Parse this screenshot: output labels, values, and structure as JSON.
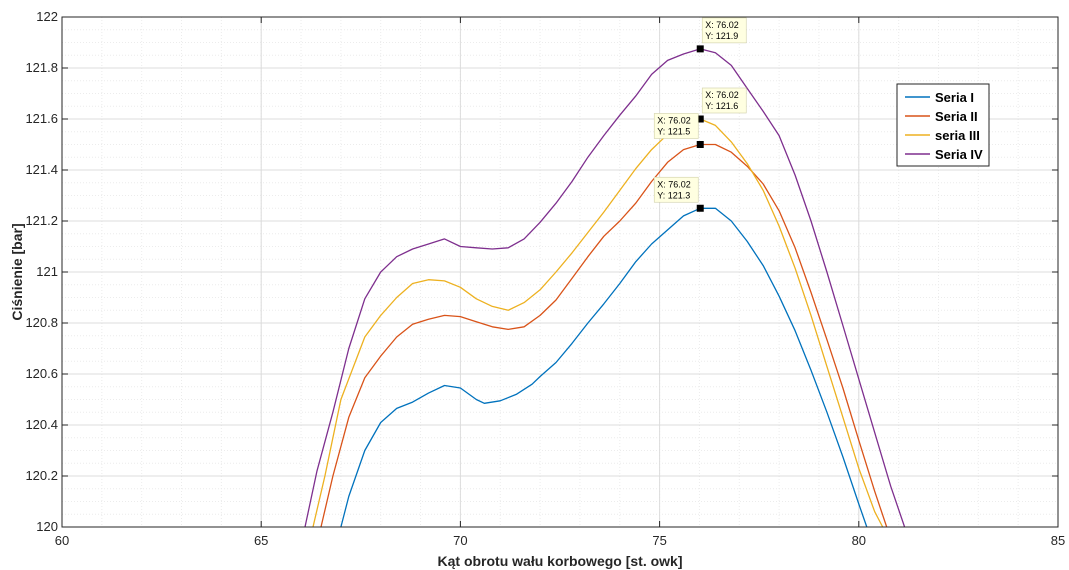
{
  "chart_data": {
    "type": "line",
    "xlabel": "Kąt obrotu wału korbowego [st. owk]",
    "ylabel": "Ciśnienie [bar]",
    "xlim": [
      60,
      85
    ],
    "ylim": [
      120,
      122
    ],
    "x_ticks": [
      "60",
      "65",
      "70",
      "75",
      "80",
      "85"
    ],
    "y_ticks": [
      "120",
      "120.2",
      "120.4",
      "120.6",
      "120.8",
      "121",
      "121.2",
      "121.4",
      "121.6",
      "121.8",
      "122"
    ],
    "grid": true,
    "minor_grid": true,
    "legend_position": "right",
    "series": [
      {
        "name": "Seria I",
        "color": "#0072BD",
        "points": [
          [
            67.0,
            120.0
          ],
          [
            67.2,
            120.12
          ],
          [
            67.6,
            120.3
          ],
          [
            68.0,
            120.41
          ],
          [
            68.4,
            120.465
          ],
          [
            68.8,
            120.49
          ],
          [
            69.2,
            120.525
          ],
          [
            69.6,
            120.555
          ],
          [
            70.0,
            120.545
          ],
          [
            70.4,
            120.5
          ],
          [
            70.6,
            120.485
          ],
          [
            71.0,
            120.495
          ],
          [
            71.4,
            120.52
          ],
          [
            71.8,
            120.56
          ],
          [
            72.0,
            120.59
          ],
          [
            72.4,
            120.645
          ],
          [
            72.8,
            120.72
          ],
          [
            73.2,
            120.8
          ],
          [
            73.6,
            120.875
          ],
          [
            74.0,
            120.955
          ],
          [
            74.4,
            121.04
          ],
          [
            74.8,
            121.11
          ],
          [
            75.2,
            121.165
          ],
          [
            75.6,
            121.22
          ],
          [
            76.02,
            121.25
          ],
          [
            76.4,
            121.25
          ],
          [
            76.8,
            121.2
          ],
          [
            77.2,
            121.12
          ],
          [
            77.6,
            121.025
          ],
          [
            78.0,
            120.905
          ],
          [
            78.4,
            120.77
          ],
          [
            78.8,
            120.615
          ],
          [
            79.2,
            120.45
          ],
          [
            79.6,
            120.275
          ],
          [
            80.0,
            120.09
          ],
          [
            80.2,
            120.0
          ]
        ]
      },
      {
        "name": "Seria II",
        "color": "#D95319",
        "points": [
          [
            66.5,
            120.0
          ],
          [
            66.8,
            120.2
          ],
          [
            67.2,
            120.43
          ],
          [
            67.6,
            120.585
          ],
          [
            68.0,
            120.67
          ],
          [
            68.4,
            120.745
          ],
          [
            68.8,
            120.795
          ],
          [
            69.2,
            120.815
          ],
          [
            69.6,
            120.83
          ],
          [
            70.0,
            120.825
          ],
          [
            70.4,
            120.805
          ],
          [
            70.8,
            120.785
          ],
          [
            71.2,
            120.775
          ],
          [
            71.6,
            120.785
          ],
          [
            72.0,
            120.83
          ],
          [
            72.4,
            120.89
          ],
          [
            72.8,
            120.975
          ],
          [
            73.2,
            121.06
          ],
          [
            73.6,
            121.14
          ],
          [
            74.0,
            121.2
          ],
          [
            74.4,
            121.27
          ],
          [
            74.8,
            121.355
          ],
          [
            75.2,
            121.43
          ],
          [
            75.6,
            121.48
          ],
          [
            76.02,
            121.5
          ],
          [
            76.4,
            121.5
          ],
          [
            76.8,
            121.47
          ],
          [
            77.2,
            121.415
          ],
          [
            77.6,
            121.345
          ],
          [
            78.0,
            121.24
          ],
          [
            78.4,
            121.095
          ],
          [
            78.8,
            120.92
          ],
          [
            79.2,
            120.735
          ],
          [
            79.6,
            120.545
          ],
          [
            80.0,
            120.34
          ],
          [
            80.4,
            120.14
          ],
          [
            80.7,
            120.0
          ]
        ]
      },
      {
        "name": "seria III",
        "color": "#EDB120",
        "points": [
          [
            66.3,
            120.0
          ],
          [
            66.6,
            120.2
          ],
          [
            67.0,
            120.5
          ],
          [
            67.6,
            120.745
          ],
          [
            68.0,
            120.83
          ],
          [
            68.4,
            120.9
          ],
          [
            68.8,
            120.955
          ],
          [
            69.2,
            120.97
          ],
          [
            69.6,
            120.965
          ],
          [
            70.0,
            120.94
          ],
          [
            70.4,
            120.895
          ],
          [
            70.8,
            120.865
          ],
          [
            71.2,
            120.85
          ],
          [
            71.6,
            120.88
          ],
          [
            72.0,
            120.93
          ],
          [
            72.4,
            121.0
          ],
          [
            72.8,
            121.075
          ],
          [
            73.2,
            121.155
          ],
          [
            73.6,
            121.235
          ],
          [
            74.0,
            121.32
          ],
          [
            74.4,
            121.405
          ],
          [
            74.8,
            121.48
          ],
          [
            75.2,
            121.54
          ],
          [
            75.6,
            121.585
          ],
          [
            76.02,
            121.6
          ],
          [
            76.4,
            121.575
          ],
          [
            76.8,
            121.51
          ],
          [
            77.2,
            121.425
          ],
          [
            77.6,
            121.32
          ],
          [
            78.0,
            121.18
          ],
          [
            78.4,
            121.015
          ],
          [
            78.8,
            120.83
          ],
          [
            79.2,
            120.63
          ],
          [
            79.6,
            120.43
          ],
          [
            80.0,
            120.23
          ],
          [
            80.4,
            120.06
          ],
          [
            80.6,
            120.0
          ]
        ]
      },
      {
        "name": "Seria IV",
        "color": "#7E2F8E",
        "points": [
          [
            66.1,
            120.0
          ],
          [
            66.4,
            120.22
          ],
          [
            66.8,
            120.45
          ],
          [
            67.2,
            120.7
          ],
          [
            67.6,
            120.895
          ],
          [
            68.0,
            121.0
          ],
          [
            68.4,
            121.06
          ],
          [
            68.8,
            121.09
          ],
          [
            69.2,
            121.11
          ],
          [
            69.6,
            121.13
          ],
          [
            70.0,
            121.1
          ],
          [
            70.4,
            121.095
          ],
          [
            70.8,
            121.09
          ],
          [
            71.2,
            121.095
          ],
          [
            71.6,
            121.13
          ],
          [
            72.0,
            121.195
          ],
          [
            72.4,
            121.27
          ],
          [
            72.8,
            121.355
          ],
          [
            73.2,
            121.45
          ],
          [
            73.6,
            121.535
          ],
          [
            74.0,
            121.615
          ],
          [
            74.4,
            121.69
          ],
          [
            74.8,
            121.775
          ],
          [
            75.2,
            121.83
          ],
          [
            75.6,
            121.855
          ],
          [
            76.02,
            121.875
          ],
          [
            76.4,
            121.86
          ],
          [
            76.8,
            121.81
          ],
          [
            77.2,
            121.72
          ],
          [
            77.6,
            121.63
          ],
          [
            78.0,
            121.535
          ],
          [
            78.4,
            121.38
          ],
          [
            78.8,
            121.2
          ],
          [
            79.2,
            121.0
          ],
          [
            79.6,
            120.79
          ],
          [
            80.0,
            120.58
          ],
          [
            80.4,
            120.37
          ],
          [
            80.8,
            120.16
          ],
          [
            81.15,
            120.0
          ]
        ]
      }
    ],
    "datatips": [
      {
        "x": 76.02,
        "y": 121.875,
        "label_x": "X: 76.02",
        "label_y": "Y: 121.9",
        "placement": "right"
      },
      {
        "x": 76.02,
        "y": 121.6,
        "label_x": "X: 76.02",
        "label_y": "Y: 121.6",
        "placement": "right"
      },
      {
        "x": 76.02,
        "y": 121.5,
        "label_x": "X: 76.02",
        "label_y": "Y: 121.5",
        "placement": "left"
      },
      {
        "x": 76.02,
        "y": 121.25,
        "label_x": "X: 76.02",
        "label_y": "Y: 121.3",
        "placement": "left"
      }
    ]
  }
}
